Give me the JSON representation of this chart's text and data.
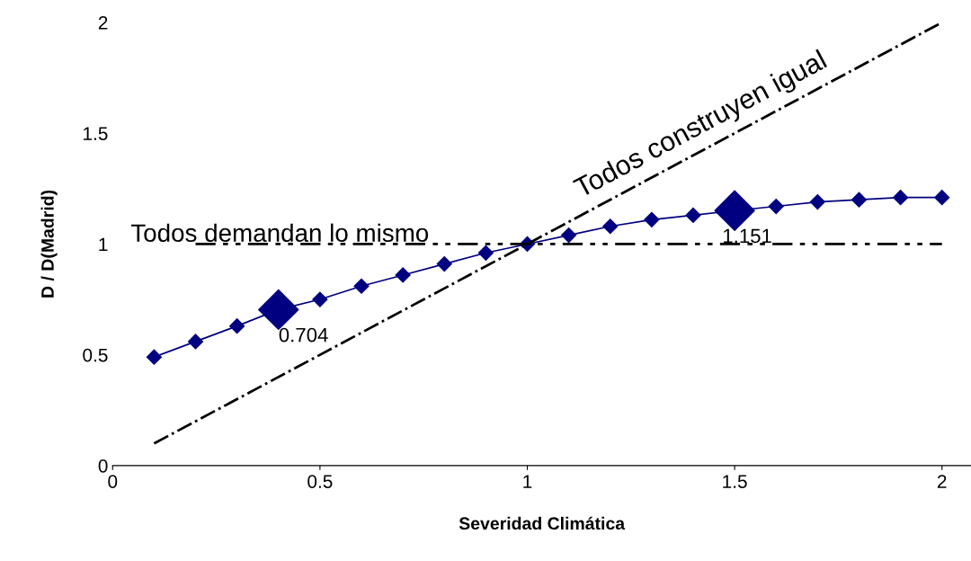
{
  "chart_data": {
    "type": "line",
    "xlabel": "Severidad Climática",
    "ylabel": "D / D(Madrid)",
    "x": [
      0.1,
      0.2,
      0.3,
      0.4,
      0.5,
      0.6,
      0.7,
      0.8,
      0.9,
      1.0,
      1.1,
      1.2,
      1.3,
      1.4,
      1.5,
      1.6,
      1.7,
      1.8,
      1.9,
      2.0
    ],
    "series": [
      {
        "color": "#000080",
        "marker": "diamond",
        "line_style": "solid",
        "values": [
          0.49,
          0.56,
          0.63,
          0.704,
          0.75,
          0.81,
          0.86,
          0.91,
          0.96,
          1.0,
          1.04,
          1.08,
          1.11,
          1.13,
          1.151,
          1.17,
          1.19,
          1.2,
          1.21,
          1.21
        ]
      },
      {
        "type": "scatter",
        "color": "#000080",
        "marker": "diamond",
        "x": [
          0.4,
          1.5
        ],
        "values": [
          0.704,
          1.151
        ]
      },
      {
        "type": "line",
        "color": "#000000",
        "marker": "none",
        "line_style": "dashed",
        "x": [
          0.1,
          2.0
        ],
        "values": [
          0.1,
          2.0
        ]
      },
      {
        "type": "line",
        "color": "#000000",
        "marker": "none",
        "line_style": "dotted",
        "x": [
          0.2,
          2.0
        ],
        "values": [
          1.0,
          1.0
        ]
      }
    ],
    "annotations": [
      {
        "text": "0.704",
        "x": 0.4,
        "y": 0.704
      },
      {
        "text": "1.151",
        "x": 1.5,
        "y": 1.151
      },
      "Todos construyen igual",
      "Todos demandan lo mismo"
    ],
    "xlim": [
      0,
      2.07
    ],
    "ylim": [
      0,
      2
    ],
    "xticks": [
      0,
      0.5,
      1,
      1.5,
      2
    ],
    "yticks": [
      0,
      0.5,
      1,
      1.5,
      2
    ],
    "grid": false,
    "legend": false
  }
}
